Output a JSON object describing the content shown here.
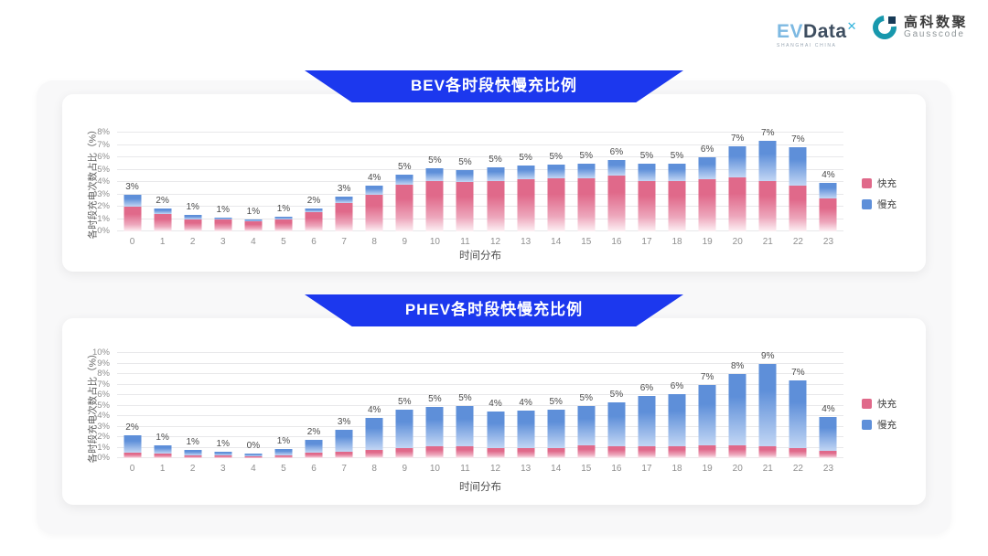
{
  "header": {
    "evdata_logo": {
      "part1": "EV",
      "part2": "Data",
      "sup": "✕",
      "subtext": "SHANGHAI CHINA"
    },
    "gausscode_logo": {
      "name_cn": "高科数聚",
      "name_en": "Gausscode"
    }
  },
  "colors": {
    "fast": "#e0698a",
    "fast_mid": "#eda7bc",
    "fast_fade": "#fdf0f4",
    "slow": "#5e8fd9",
    "slow_fade": "#c2d6f4",
    "banner": "#1c38ee"
  },
  "chart_data": [
    {
      "type": "bar",
      "stacked": true,
      "title": "BEV各时段快慢充比例",
      "ylabel": "各时段充电次数占比（%）",
      "xlabel": "时间分布",
      "ylim": [
        0,
        8
      ],
      "yticks": [
        "0%",
        "1%",
        "2%",
        "3%",
        "4%",
        "5%",
        "6%",
        "7%",
        "8%"
      ],
      "grid": true,
      "legend_position": "right",
      "categories": [
        "0",
        "1",
        "2",
        "3",
        "4",
        "5",
        "6",
        "7",
        "8",
        "9",
        "10",
        "11",
        "12",
        "13",
        "14",
        "15",
        "16",
        "17",
        "18",
        "19",
        "20",
        "21",
        "22",
        "23"
      ],
      "series": [
        {
          "name": "快充",
          "values": [
            2.0,
            1.4,
            1.0,
            0.95,
            0.85,
            1.0,
            1.55,
            2.3,
            3.0,
            3.8,
            4.1,
            4.0,
            4.1,
            4.2,
            4.3,
            4.3,
            4.5,
            4.1,
            4.1,
            4.2,
            4.4,
            4.1,
            3.7,
            2.7
          ]
        },
        {
          "name": "慢充",
          "values": [
            1.0,
            0.45,
            0.3,
            0.15,
            0.1,
            0.15,
            0.3,
            0.5,
            0.7,
            0.8,
            1.0,
            1.0,
            1.1,
            1.1,
            1.1,
            1.15,
            1.3,
            1.35,
            1.4,
            1.8,
            2.5,
            3.2,
            3.1,
            1.2
          ]
        }
      ],
      "labels": [
        "3%",
        "2%",
        "1%",
        "1%",
        "1%",
        "1%",
        "2%",
        "3%",
        "4%",
        "5%",
        "5%",
        "5%",
        "5%",
        "5%",
        "5%",
        "5%",
        "6%",
        "5%",
        "5%",
        "6%",
        "7%",
        "7%",
        "7%",
        "4%"
      ]
    },
    {
      "type": "bar",
      "stacked": true,
      "title": "PHEV各时段快慢充比例",
      "ylabel": "各时段充电次数占比（%）",
      "xlabel": "时间分布",
      "ylim": [
        0,
        10
      ],
      "yticks": [
        "0%",
        "1%",
        "2%",
        "3%",
        "4%",
        "5%",
        "6%",
        "7%",
        "8%",
        "9%",
        "10%"
      ],
      "grid": true,
      "legend_position": "right",
      "categories": [
        "0",
        "1",
        "2",
        "3",
        "4",
        "5",
        "6",
        "7",
        "8",
        "9",
        "10",
        "11",
        "12",
        "13",
        "14",
        "15",
        "16",
        "17",
        "18",
        "19",
        "20",
        "21",
        "22",
        "23"
      ],
      "series": [
        {
          "name": "快充",
          "values": [
            0.5,
            0.4,
            0.3,
            0.25,
            0.15,
            0.3,
            0.5,
            0.6,
            0.8,
            1.0,
            1.1,
            1.1,
            1.0,
            1.0,
            1.0,
            1.2,
            1.1,
            1.1,
            1.1,
            1.2,
            1.2,
            1.1,
            1.0,
            0.7
          ]
        },
        {
          "name": "慢充",
          "values": [
            1.7,
            0.8,
            0.5,
            0.35,
            0.3,
            0.6,
            1.2,
            2.1,
            3.0,
            3.6,
            3.8,
            3.9,
            3.4,
            3.5,
            3.6,
            3.8,
            4.2,
            4.8,
            5.0,
            5.8,
            6.8,
            7.9,
            6.4,
            3.2
          ]
        }
      ],
      "labels": [
        "2%",
        "1%",
        "1%",
        "1%",
        "0%",
        "1%",
        "2%",
        "3%",
        "4%",
        "5%",
        "5%",
        "5%",
        "4%",
        "4%",
        "5%",
        "5%",
        "5%",
        "6%",
        "6%",
        "7%",
        "8%",
        "9%",
        "7%",
        "4%"
      ]
    }
  ]
}
